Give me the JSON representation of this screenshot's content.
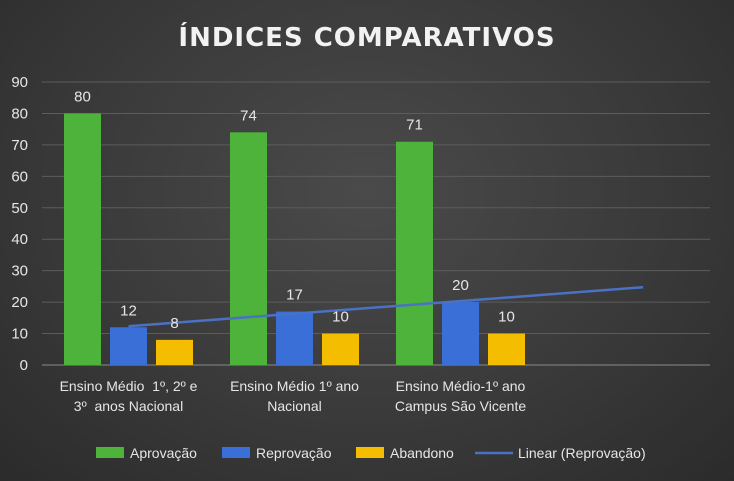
{
  "chart_data": {
    "type": "bar",
    "title": "ÍNDICES COMPARATIVOS",
    "categories": [
      [
        "Ensino Médio  1º, 2º e",
        "3º  anos Nacional"
      ],
      [
        "Ensino Médio 1º ano",
        "Nacional"
      ],
      [
        "Ensino Médio-1º ano",
        "Campus São Vicente"
      ]
    ],
    "series": [
      {
        "name": "Aprovação",
        "values": [
          80,
          74,
          71
        ],
        "color": "#4db33a"
      },
      {
        "name": "Reprovação",
        "values": [
          12,
          17,
          20
        ],
        "color": "#3a6fd8"
      },
      {
        "name": "Abandono",
        "values": [
          8,
          10,
          10
        ],
        "color": "#f5bd00"
      }
    ],
    "trendline": {
      "name": "Linear (Reprovação)",
      "series": "Reprovação",
      "type": "linear",
      "color": "#4a72c4"
    },
    "ylim": [
      0,
      90
    ],
    "yticks": [
      0,
      10,
      20,
      30,
      40,
      50,
      60,
      70,
      80,
      90
    ],
    "grid": true,
    "legend": "bottom",
    "data_labels": true
  }
}
